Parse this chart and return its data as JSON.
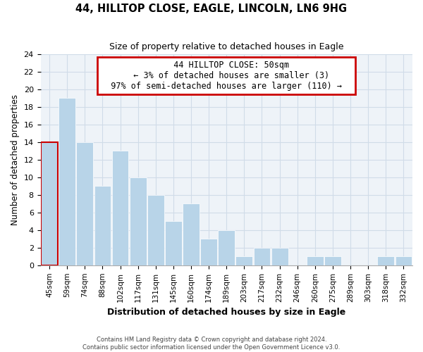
{
  "title": "44, HILLTOP CLOSE, EAGLE, LINCOLN, LN6 9HG",
  "subtitle": "Size of property relative to detached houses in Eagle",
  "xlabel": "Distribution of detached houses by size in Eagle",
  "ylabel": "Number of detached properties",
  "footer_line1": "Contains HM Land Registry data © Crown copyright and database right 2024.",
  "footer_line2": "Contains public sector information licensed under the Open Government Licence v3.0.",
  "bin_labels": [
    "45sqm",
    "59sqm",
    "74sqm",
    "88sqm",
    "102sqm",
    "117sqm",
    "131sqm",
    "145sqm",
    "160sqm",
    "174sqm",
    "189sqm",
    "203sqm",
    "217sqm",
    "232sqm",
    "246sqm",
    "260sqm",
    "275sqm",
    "289sqm",
    "303sqm",
    "318sqm",
    "332sqm"
  ],
  "bar_heights": [
    14,
    19,
    14,
    9,
    13,
    10,
    8,
    5,
    7,
    3,
    4,
    1,
    2,
    2,
    0,
    1,
    1,
    0,
    0,
    1,
    1
  ],
  "highlight_bin_index": 0,
  "bar_color": "#b8d4e8",
  "highlight_outline_color": "#cc0000",
  "grid_color": "#d0dce8",
  "background_color": "#eef3f8",
  "ylim": [
    0,
    24
  ],
  "yticks": [
    0,
    2,
    4,
    6,
    8,
    10,
    12,
    14,
    16,
    18,
    20,
    22,
    24
  ],
  "annotation_title": "44 HILLTOP CLOSE: 50sqm",
  "annotation_line2": "← 3% of detached houses are smaller (3)",
  "annotation_line3": "97% of semi-detached houses are larger (110) →",
  "annotation_box_color": "#ffffff",
  "annotation_border_color": "#cc0000"
}
